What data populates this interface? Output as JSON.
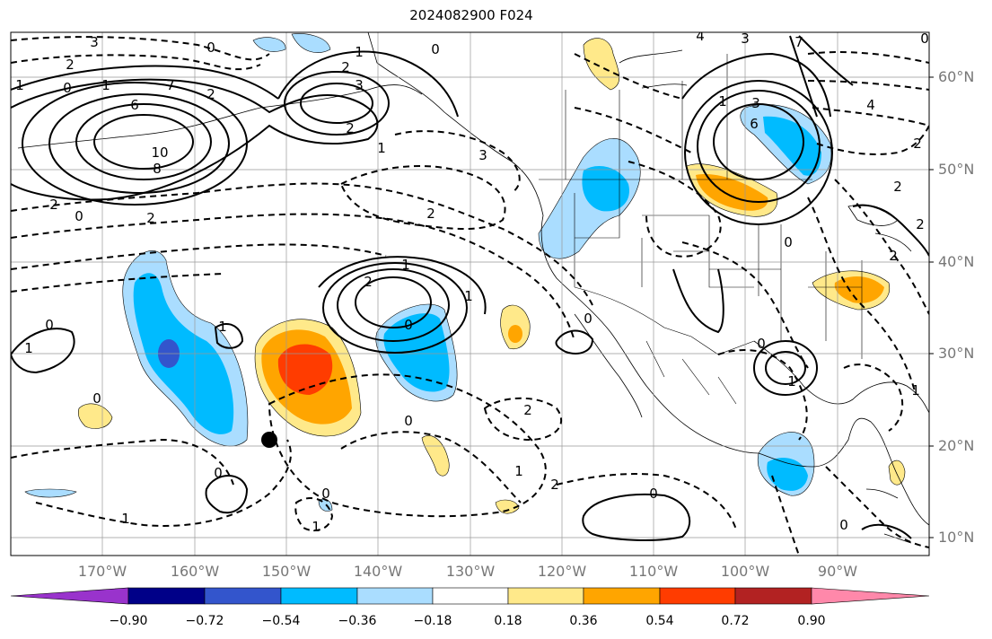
{
  "title": "2024082900 F024",
  "latitude_labels": [
    "60°N",
    "50°N",
    "40°N",
    "30°N",
    "20°N",
    "10°N"
  ],
  "longitude_labels": [
    "170°W",
    "160°W",
    "150°W",
    "140°W",
    "130°W",
    "120°W",
    "110°W",
    "100°W",
    "90°W"
  ],
  "colorbar": {
    "tick_labels": [
      "−0.90",
      "−0.72",
      "−0.54",
      "−0.36",
      "−0.18",
      "0.18",
      "0.36",
      "0.54",
      "0.72",
      "0.90"
    ],
    "colors": [
      "#9933cc",
      "#000088",
      "#3355cc",
      "#00bbff",
      "#aaddff",
      "#ffffff",
      "#ffe98a",
      "#ffa500",
      "#ff3c00",
      "#b22222",
      "#ff88aa"
    ]
  },
  "contour_labels": [
    "3",
    "2",
    "1",
    "0",
    "1",
    "6",
    "7",
    "2",
    "10",
    "8",
    "2",
    "0",
    "2",
    "0",
    "3",
    "2",
    "1",
    "0",
    "2",
    "1",
    "2",
    "3",
    "1",
    "0",
    "0",
    "1",
    "0",
    "1",
    "2",
    "1",
    "0",
    "1",
    "2",
    "0",
    "0",
    "0",
    "2",
    "1",
    "0",
    "1",
    "0",
    "1",
    "4",
    "3",
    "7",
    "6",
    "3",
    "1",
    "0",
    "2",
    "4",
    "2",
    "2",
    "1",
    "0",
    "2",
    "0"
  ],
  "colors": {
    "land_outline": "#000000",
    "grid": "#999999",
    "axis_label": "#777777"
  },
  "marker": {
    "type": "filled-circle",
    "color": "#000000"
  }
}
